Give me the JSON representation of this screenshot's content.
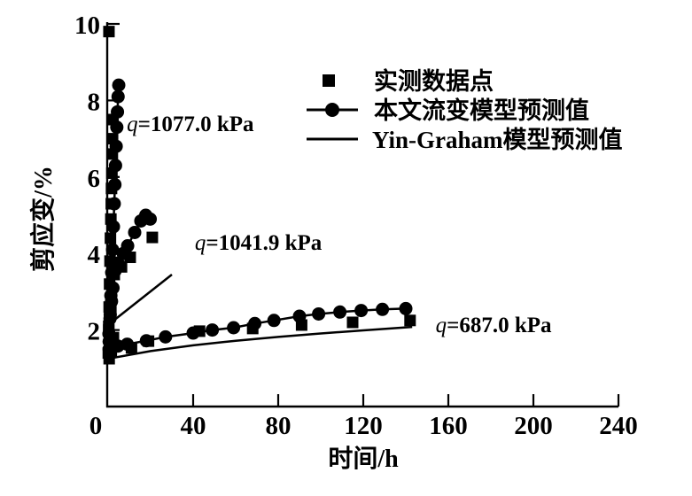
{
  "figure": {
    "background": "#ffffff",
    "ink": "#000000"
  },
  "chart_data": {
    "type": "line",
    "title": "",
    "xlabel": "时间/h",
    "ylabel": "剪应变/%",
    "xlim": [
      0,
      240
    ],
    "ylim": [
      0,
      10
    ],
    "xticks": [
      0,
      40,
      80,
      120,
      160,
      200,
      240
    ],
    "yticks": [
      2,
      4,
      6,
      8,
      10
    ],
    "grid": false,
    "legend": {
      "position": "top-right",
      "entries": [
        {
          "label": "实测数据点",
          "marker": "square",
          "line": false
        },
        {
          "label": "本文流变模型预测值",
          "marker": "circle",
          "line": true
        },
        {
          "label": "Yin-Graham模型预测值",
          "marker": "none",
          "line": true
        }
      ]
    },
    "annotations": [
      {
        "text": "q=1077.0 kPa",
        "x": 8.8,
        "y": 7.2
      },
      {
        "text": "q=1041.9 kPa",
        "x": 40.8,
        "y": 4.1
      },
      {
        "text": "q=687.0 kPa",
        "x": 154,
        "y": 1.94
      }
    ],
    "series": [
      {
        "name": "实测数据点 q=1077.0 kPa",
        "role": "measured-1077",
        "marker": "square",
        "line": false,
        "points": [
          [
            0.1,
            1.4
          ],
          [
            0.3,
            2.0
          ],
          [
            0.5,
            2.6
          ],
          [
            0.7,
            3.2
          ],
          [
            0.9,
            3.8
          ],
          [
            1.1,
            4.4
          ],
          [
            1.3,
            4.9
          ],
          [
            1.5,
            5.3
          ],
          [
            1.6,
            5.7
          ],
          [
            1.8,
            6.1
          ],
          [
            2.0,
            6.6
          ],
          [
            2.1,
            7.0
          ],
          [
            2.3,
            7.5
          ],
          [
            0.4,
            9.8
          ]
        ]
      },
      {
        "name": "本文流变模型预测值 q=1077.0 kPa",
        "role": "model-1077",
        "marker": "circle",
        "line": true,
        "points": [
          [
            0.5,
            1.7
          ],
          [
            0.9,
            2.3
          ],
          [
            1.3,
            2.9
          ],
          [
            1.7,
            3.5
          ],
          [
            2.1,
            4.1
          ],
          [
            2.5,
            4.7
          ],
          [
            2.9,
            5.3
          ],
          [
            3.2,
            5.8
          ],
          [
            3.5,
            6.3
          ],
          [
            3.8,
            6.8
          ],
          [
            4.1,
            7.3
          ],
          [
            4.4,
            7.7
          ],
          [
            4.7,
            8.1
          ],
          [
            5.0,
            8.4
          ]
        ]
      },
      {
        "name": "实测数据点 q=1041.9 kPa",
        "role": "measured-1041",
        "marker": "square",
        "line": false,
        "points": [
          [
            0.3,
            2.1
          ],
          [
            1.3,
            2.6
          ],
          [
            2.9,
            3.45
          ],
          [
            6.3,
            3.65
          ],
          [
            10.4,
            3.9
          ],
          [
            20.8,
            4.42
          ]
        ]
      },
      {
        "name": "本文流变模型预测值 q=1041.9 kPa",
        "role": "model-1041",
        "marker": "circle",
        "line": true,
        "points": [
          [
            0.4,
            1.9
          ],
          [
            1.0,
            2.4
          ],
          [
            1.6,
            2.75
          ],
          [
            2.3,
            3.1
          ],
          [
            3.3,
            3.55
          ],
          [
            4.6,
            3.75
          ],
          [
            7.1,
            4.0
          ],
          [
            9.2,
            4.2
          ],
          [
            12.5,
            4.55
          ],
          [
            15.4,
            4.85
          ],
          [
            17.7,
            5.0
          ],
          [
            19.8,
            4.9
          ]
        ]
      },
      {
        "name": "Yin-Graham模型预测值 q=1041.9 kPa",
        "role": "yingraham-1041",
        "marker": "none",
        "line": true,
        "points": [
          [
            1.5,
            2.2
          ],
          [
            30,
            3.45
          ]
        ]
      },
      {
        "name": "实测数据点 q=687.0 kPa",
        "role": "measured-687",
        "marker": "square",
        "line": false,
        "points": [
          [
            0.5,
            1.25
          ],
          [
            1.5,
            1.45
          ],
          [
            2.5,
            1.8
          ],
          [
            11,
            1.53
          ],
          [
            19,
            1.71
          ],
          [
            43,
            1.97
          ],
          [
            68,
            2.04
          ],
          [
            91,
            2.13
          ],
          [
            115,
            2.2
          ],
          [
            142,
            2.25
          ]
        ]
      },
      {
        "name": "本文流变模型预测值 q=687.0 kPa",
        "role": "model-687",
        "marker": "circle",
        "line": true,
        "points": [
          [
            0.5,
            1.5
          ],
          [
            4.6,
            1.58
          ],
          [
            9,
            1.63
          ],
          [
            18,
            1.72
          ],
          [
            27,
            1.82
          ],
          [
            40,
            1.92
          ],
          [
            49,
            2.0
          ],
          [
            59,
            2.06
          ],
          [
            69,
            2.17
          ],
          [
            78,
            2.25
          ],
          [
            90,
            2.36
          ],
          [
            99,
            2.42
          ],
          [
            109,
            2.47
          ],
          [
            119,
            2.51
          ],
          [
            129,
            2.54
          ],
          [
            140,
            2.56
          ]
        ]
      },
      {
        "name": "Yin-Graham模型预测值 q=687.0 kPa",
        "role": "yingraham-687",
        "marker": "none",
        "line": true,
        "points": [
          [
            0,
            1.25
          ],
          [
            20,
            1.45
          ],
          [
            40,
            1.6
          ],
          [
            60,
            1.72
          ],
          [
            80,
            1.82
          ],
          [
            100,
            1.91
          ],
          [
            120,
            1.99
          ],
          [
            143,
            2.08
          ]
        ]
      }
    ]
  }
}
